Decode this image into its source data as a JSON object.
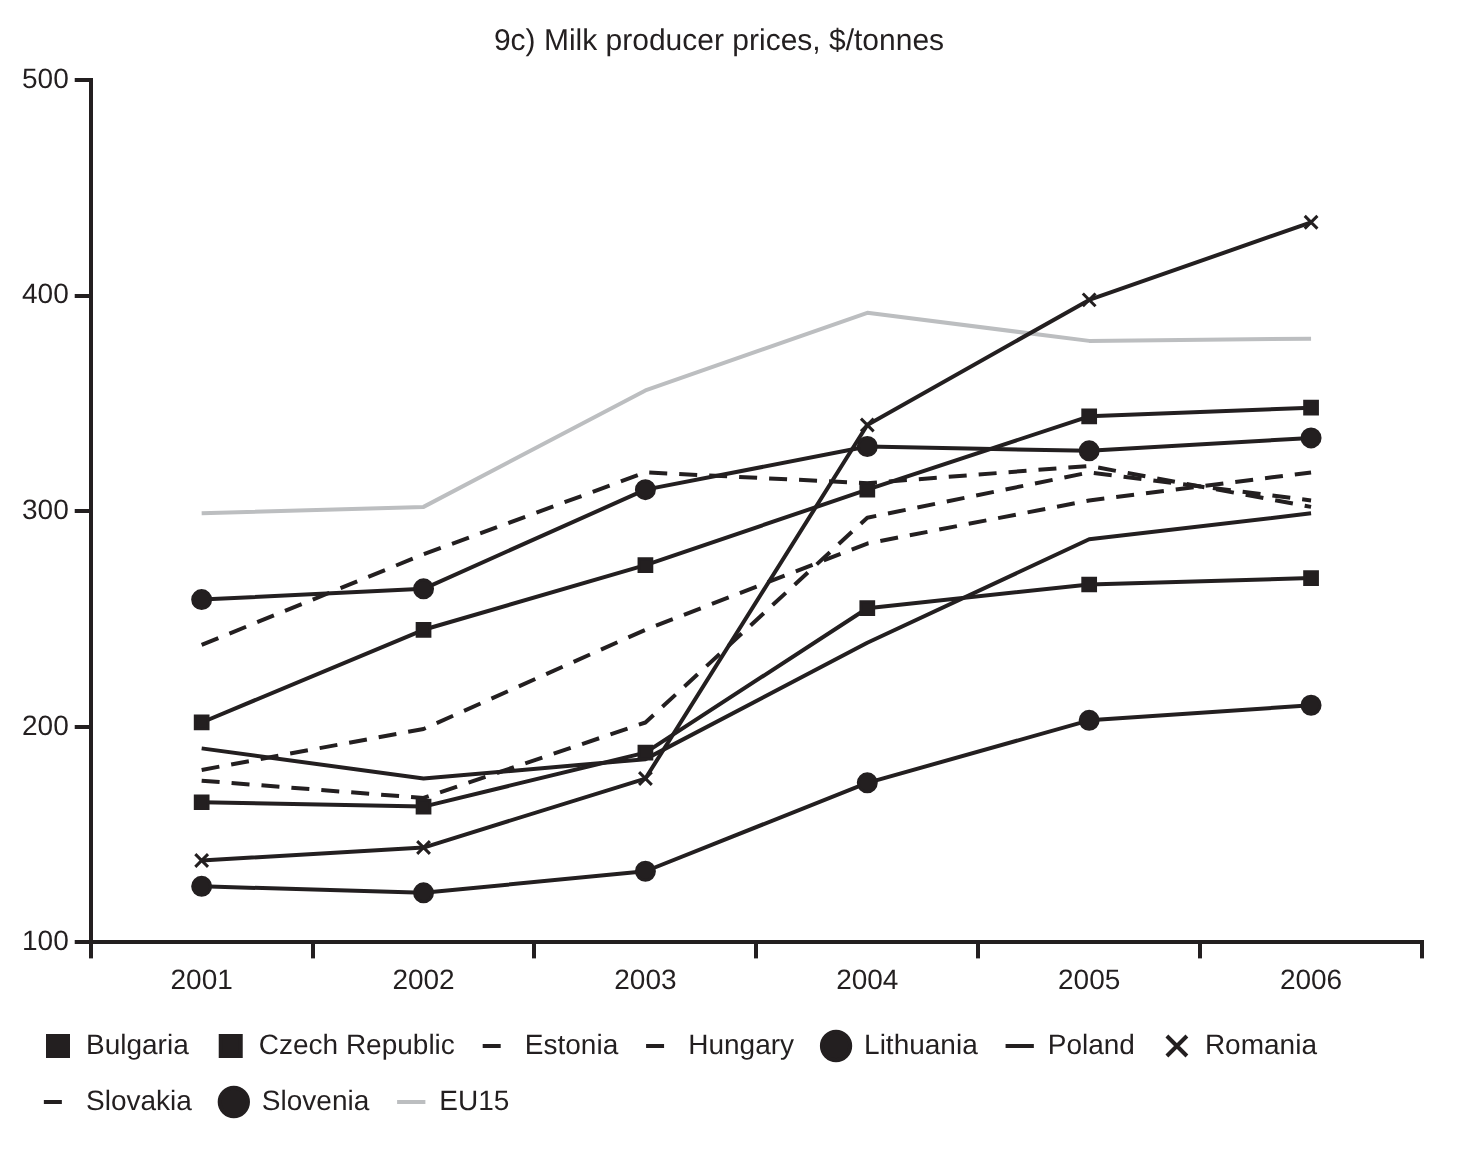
{
  "chart_data": {
    "type": "line",
    "title": "9c) Milk producer prices, $/tonnes",
    "categories": [
      "2001",
      "2002",
      "2003",
      "2004",
      "2005",
      "2006"
    ],
    "series": [
      {
        "name": "Bulgaria",
        "color": "#231f20",
        "marker": "square",
        "values": [
          165,
          163,
          188,
          255,
          266,
          269
        ]
      },
      {
        "name": "Czech Republic",
        "color": "#231f20",
        "marker": "square",
        "values": [
          202,
          245,
          275,
          310,
          344,
          348
        ]
      },
      {
        "name": "Estonia",
        "color": "#231f20",
        "line_style": "dashed",
        "values": [
          175,
          167,
          202,
          297,
          318,
          305
        ]
      },
      {
        "name": "Hungary",
        "color": "#231f20",
        "line_style": "dashed",
        "values": [
          238,
          280,
          318,
          313,
          321,
          302
        ]
      },
      {
        "name": "Lithuania",
        "color": "#231f20",
        "marker": "circle",
        "values": [
          126,
          123,
          133,
          174,
          203,
          210
        ]
      },
      {
        "name": "Poland",
        "color": "#231f20",
        "values": [
          190,
          176,
          185,
          239,
          287,
          299
        ]
      },
      {
        "name": "Romania",
        "color": "#231f20",
        "marker": "cross",
        "values": [
          138,
          144,
          176,
          340,
          398,
          434
        ]
      },
      {
        "name": "Slovakia",
        "color": "#231f20",
        "line_style": "dashed",
        "values": [
          180,
          199,
          245,
          285,
          305,
          318
        ]
      },
      {
        "name": "Slovenia",
        "color": "#231f20",
        "marker": "circle",
        "values": [
          259,
          264,
          310,
          330,
          328,
          334
        ]
      },
      {
        "name": "EU15",
        "color": "#bcbec0",
        "values": [
          299,
          302,
          356,
          392,
          379,
          380
        ]
      }
    ],
    "ylim": [
      100,
      500
    ],
    "yticks": [
      100,
      200,
      300,
      400,
      500
    ],
    "grid": false,
    "legend": "bottom",
    "marker": "none",
    "line_style": "solid"
  }
}
